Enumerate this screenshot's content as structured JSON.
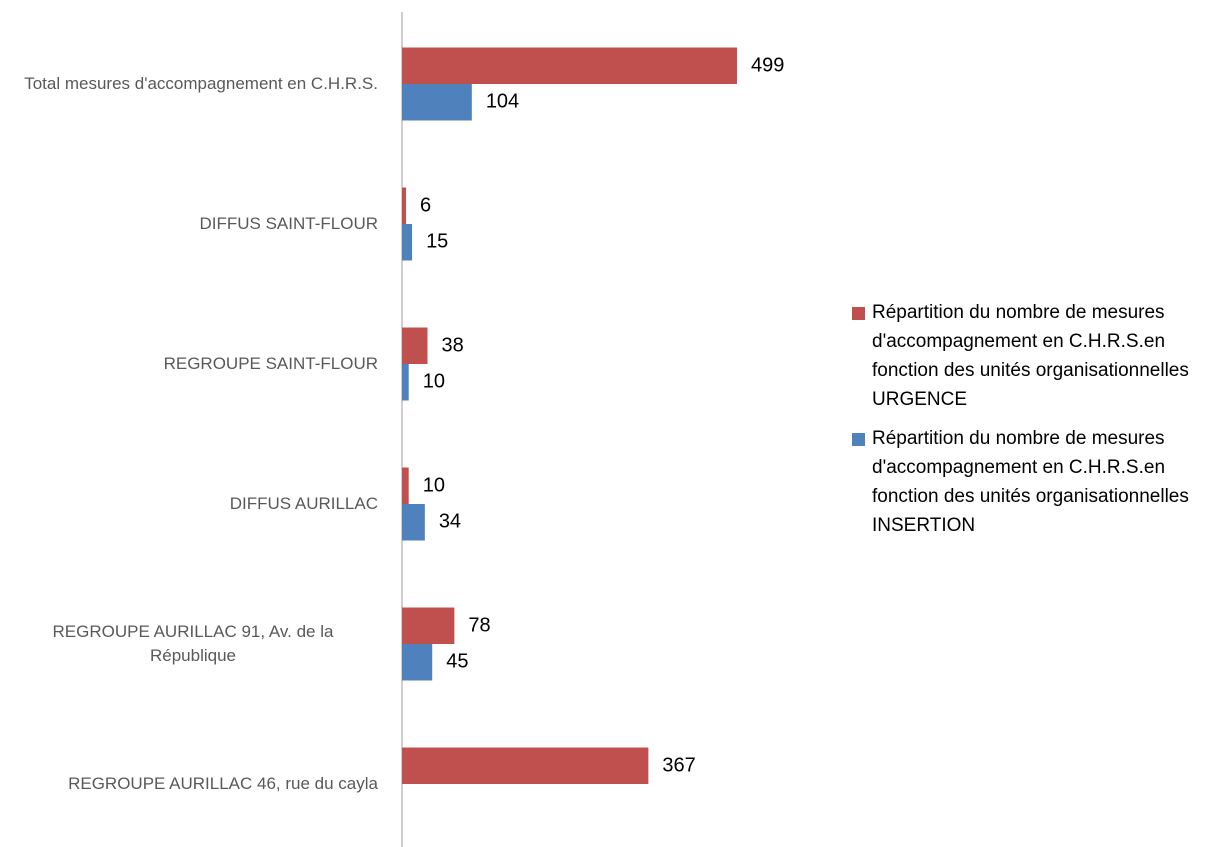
{
  "chart_data": {
    "type": "bar",
    "orientation": "horizontal",
    "categories": [
      "Total mesures d'accompagnement en C.H.R.S.",
      "DIFFUS SAINT-FLOUR",
      "REGROUPE SAINT-FLOUR",
      "DIFFUS AURILLAC",
      "REGROUPE AURILLAC 91, Av. de la République",
      "REGROUPE AURILLAC 46, rue du cayla"
    ],
    "series": [
      {
        "name": "Répartition  du nombre de mesures d'accompagnement en C.H.R.S.en fonction des unités organisationnelles  URGENCE",
        "color": "#c0504d",
        "values": [
          499,
          6,
          38,
          10,
          78,
          367
        ]
      },
      {
        "name": "Répartition  du nombre de mesures d'accompagnement en C.H.R.S.en fonction des unités organisationnelles  INSERTION",
        "color": "#4f81bd",
        "values": [
          104,
          15,
          10,
          34,
          45,
          null
        ]
      }
    ],
    "legend": "right"
  }
}
